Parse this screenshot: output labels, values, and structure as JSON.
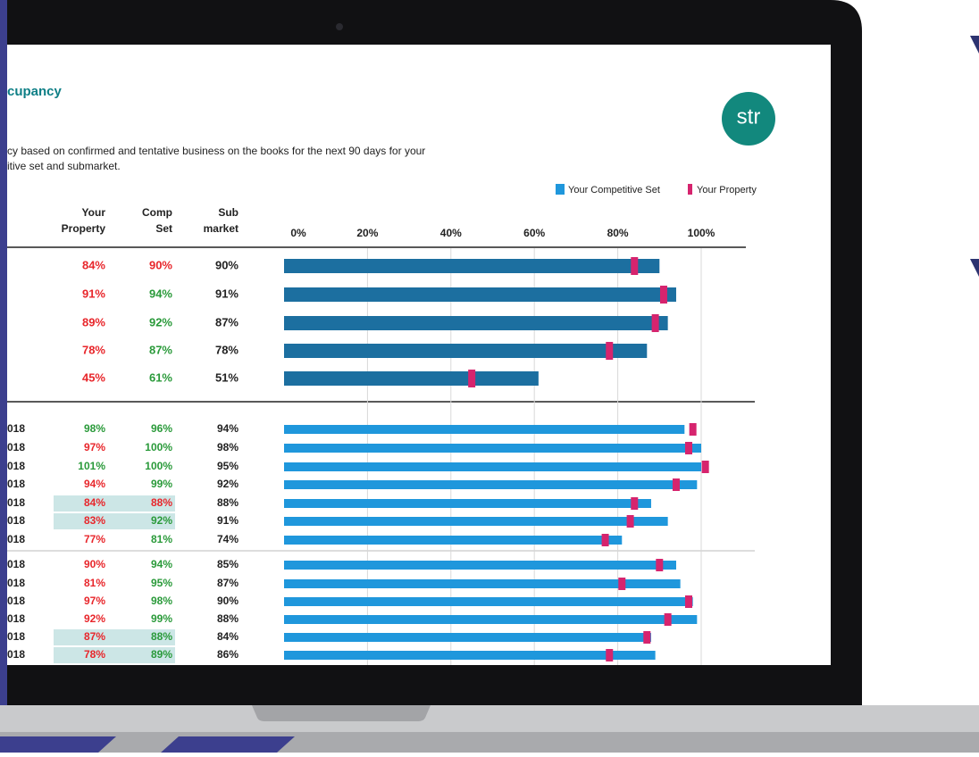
{
  "header": {
    "title": "cupancy",
    "logo": "str",
    "description": [
      "cy based on confirmed and tentative business on the books for the next 90 days for your",
      "itive set and submarket."
    ]
  },
  "table": {
    "headers": [
      [
        "Your",
        "Property"
      ],
      [
        "Comp",
        "Set"
      ],
      [
        "Sub",
        "market"
      ]
    ],
    "submarket": [
      "90%",
      "91%",
      "87%",
      "78%",
      "51%",
      "94%",
      "98%",
      "95%",
      "92%",
      "88%",
      "91%",
      "74%",
      "85%",
      "87%",
      "90%",
      "88%",
      "84%",
      "86%"
    ]
  },
  "chart_data": {
    "type": "bar",
    "categories": [
      null,
      null,
      null,
      null,
      null,
      "018",
      "018",
      "018",
      "018",
      "018",
      "018",
      "018",
      "018",
      "018",
      "018",
      "018",
      "018",
      "018"
    ],
    "series": [
      {
        "name": "Your Competitive Set",
        "color": "#1f97dc",
        "values": [
          90,
          94,
          92,
          87,
          61,
          96,
          100,
          100,
          99,
          88,
          92,
          81,
          94,
          95,
          98,
          99,
          88,
          89
        ],
        "value_labels": [
          "90%",
          "94%",
          "92%",
          "87%",
          "61%",
          "96%",
          "100%",
          "100%",
          "99%",
          "88%",
          "92%",
          "81%",
          "94%",
          "95%",
          "98%",
          "99%",
          "88%",
          "89%"
        ]
      },
      {
        "name": "Your Property",
        "color": "#d6246e",
        "values": [
          84,
          91,
          89,
          78,
          45,
          98,
          97,
          101,
          94,
          84,
          83,
          77,
          90,
          81,
          97,
          92,
          87,
          78
        ],
        "value_labels": [
          "84%",
          "91%",
          "89%",
          "78%",
          "45%",
          "98%",
          "97%",
          "101%",
          "94%",
          "84%",
          "83%",
          "77%",
          "90%",
          "81%",
          "97%",
          "92%",
          "87%",
          "78%"
        ]
      }
    ],
    "xlim": [
      0,
      100
    ],
    "xticks": [
      {
        "value": 0,
        "label": "0%"
      },
      {
        "value": 20,
        "label": "20%"
      },
      {
        "value": 40,
        "label": "40%"
      },
      {
        "value": 60,
        "label": "60%"
      },
      {
        "value": 80,
        "label": "80%"
      },
      {
        "value": 100,
        "label": "100%"
      }
    ],
    "grid": true
  }
}
